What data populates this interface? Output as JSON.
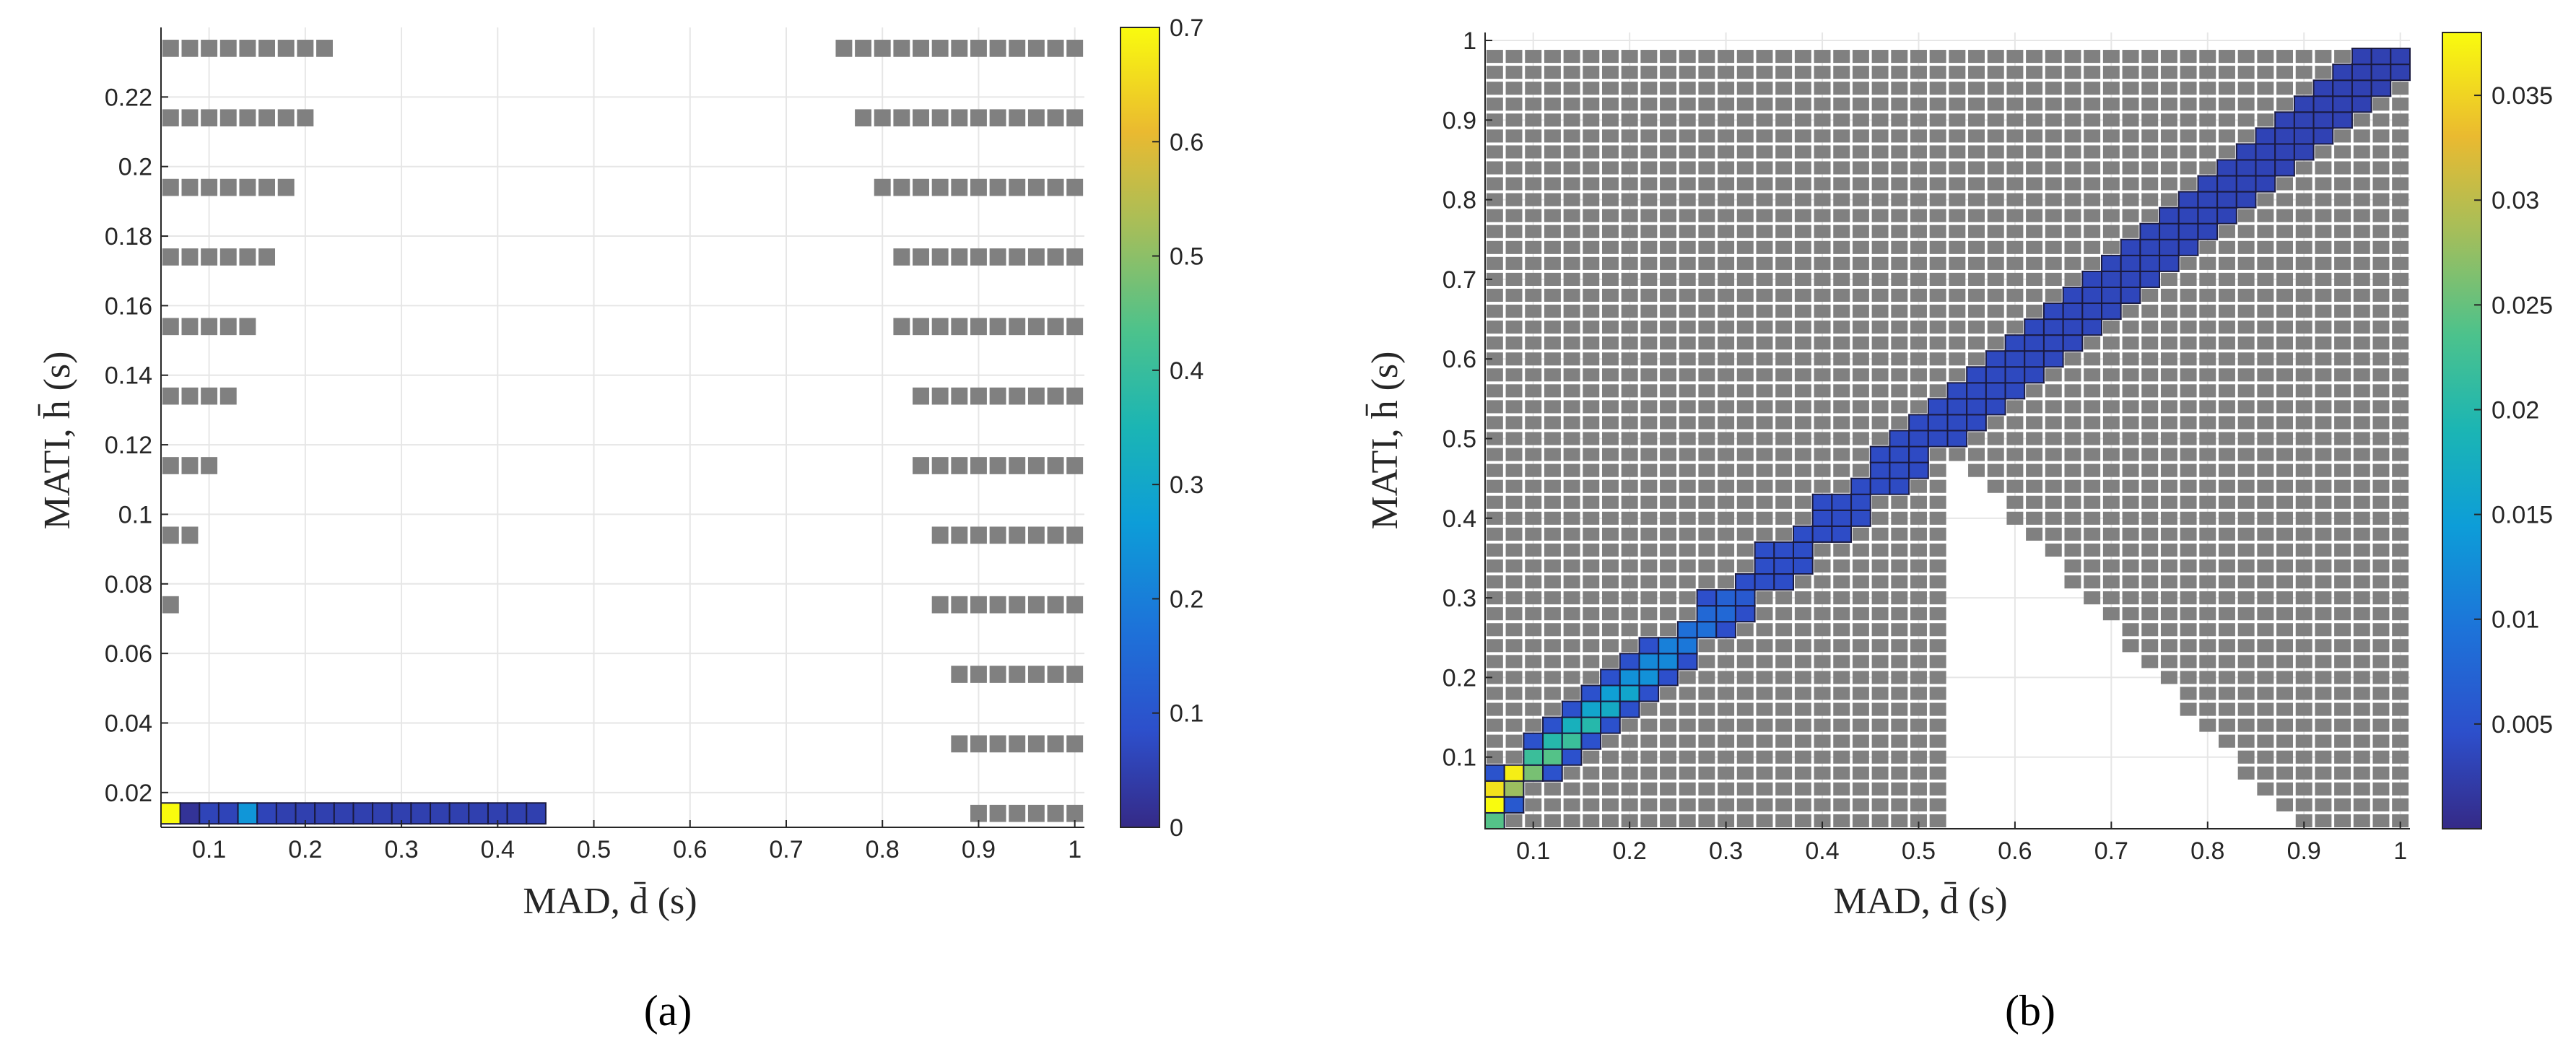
{
  "chart_data": [
    {
      "type": "heatmap",
      "panel_label": "(a)",
      "xlabel": "MAD, d̄ (s)",
      "ylabel": "MATI, h̄ (s)",
      "xlim": [
        0.05,
        1.01
      ],
      "ylim": [
        0.01,
        0.24
      ],
      "xticks": [
        0.1,
        0.2,
        0.3,
        0.4,
        0.5,
        0.6,
        0.7,
        0.8,
        0.9,
        1
      ],
      "xtick_labels": [
        "0.1",
        "0.2",
        "0.3",
        "0.4",
        "0.5",
        "0.6",
        "0.7",
        "0.8",
        "0.9",
        "1"
      ],
      "yticks": [
        0.02,
        0.04,
        0.06,
        0.08,
        0.1,
        0.12,
        0.14,
        0.16,
        0.18,
        0.2,
        0.22
      ],
      "ytick_labels": [
        "0.02",
        "0.04",
        "0.06",
        "0.08",
        "0.1",
        "0.12",
        "0.14",
        "0.16",
        "0.18",
        "0.2",
        "0.22"
      ],
      "grid": true,
      "cell_width": 0.02,
      "cell_height": 0.006,
      "infeasible_color": "#808080",
      "colorbar": {
        "min": 0,
        "max": 0.7,
        "ticks": [
          0,
          0.1,
          0.2,
          0.3,
          0.4,
          0.5,
          0.6,
          0.7
        ],
        "tick_labels": [
          "0",
          "0.1",
          "0.2",
          "0.3",
          "0.4",
          "0.5",
          "0.6",
          "0.7"
        ]
      },
      "gray_rows": [
        {
          "h": 0.234,
          "left_to": 0.23,
          "right_from": 0.76
        },
        {
          "h": 0.214,
          "left_to": 0.21,
          "right_from": 0.78
        },
        {
          "h": 0.194,
          "left_to": 0.19,
          "right_from": 0.8
        },
        {
          "h": 0.174,
          "left_to": 0.17,
          "right_from": 0.82
        },
        {
          "h": 0.154,
          "left_to": 0.15,
          "right_from": 0.82
        },
        {
          "h": 0.134,
          "left_to": 0.13,
          "right_from": 0.84
        },
        {
          "h": 0.114,
          "left_to": 0.11,
          "right_from": 0.84
        },
        {
          "h": 0.094,
          "left_to": 0.09,
          "right_from": 0.86
        },
        {
          "h": 0.074,
          "left_to": 0.07,
          "right_from": 0.86
        },
        {
          "h": 0.054,
          "left_to": 0.05,
          "right_from": 0.88
        },
        {
          "h": 0.034,
          "left_to": null,
          "right_from": 0.88
        },
        {
          "h": 0.014,
          "left_to": null,
          "right_from": 0.9
        }
      ],
      "value_row": {
        "h": 0.014,
        "d_start": 0.06,
        "values": [
          0.7,
          0.02,
          0.06,
          0.06,
          0.25,
          0.06,
          0.05,
          0.05,
          0.05,
          0.05,
          0.05,
          0.05,
          0.05,
          0.05,
          0.05,
          0.05,
          0.05,
          0.05,
          0.05,
          0.05
        ]
      }
    },
    {
      "type": "heatmap",
      "panel_label": "(b)",
      "xlabel": "MAD, d̄ (s)",
      "ylabel": "MATI, h̄ (s)",
      "xlim": [
        0.05,
        1.01
      ],
      "ylim": [
        0.01,
        1.01
      ],
      "xticks": [
        0.1,
        0.2,
        0.3,
        0.4,
        0.5,
        0.6,
        0.7,
        0.8,
        0.9,
        1
      ],
      "xtick_labels": [
        "0.1",
        "0.2",
        "0.3",
        "0.4",
        "0.5",
        "0.6",
        "0.7",
        "0.8",
        "0.9",
        "1"
      ],
      "yticks": [
        0.1,
        0.2,
        0.3,
        0.4,
        0.5,
        0.6,
        0.7,
        0.8,
        0.9,
        1
      ],
      "ytick_labels": [
        "0.1",
        "0.2",
        "0.3",
        "0.4",
        "0.5",
        "0.6",
        "0.7",
        "0.8",
        "0.9",
        "1"
      ],
      "grid": true,
      "cell_width": 0.02,
      "cell_height": 0.02,
      "infeasible_color": "#808080",
      "colorbar": {
        "min": 0,
        "max": 0.038,
        "ticks": [
          0.005,
          0.01,
          0.015,
          0.02,
          0.025,
          0.03,
          0.035
        ],
        "tick_labels": [
          "0.005",
          "0.01",
          "0.015",
          "0.02",
          "0.025",
          "0.03",
          "0.035"
        ]
      },
      "grid_range": {
        "d_start": 0.06,
        "d_end": 1.0,
        "h_start": 0.02,
        "h_end": 0.98
      },
      "band": {
        "lower_offset": 0.0,
        "upper_offset": 0.04
      },
      "blank_region": {
        "apex_d": 0.54,
        "apex_h": 0.48,
        "base_d": 0.88
      },
      "peak_values": [
        {
          "d": 0.06,
          "h": 0.06,
          "value": 0.036
        },
        {
          "d": 0.08,
          "h": 0.08,
          "value": 0.037
        },
        {
          "d": 0.06,
          "h": 0.04,
          "value": 0.038
        },
        {
          "d": 0.06,
          "h": 0.02,
          "value": 0.024
        },
        {
          "d": 0.08,
          "h": 0.06,
          "value": 0.028
        },
        {
          "d": 0.08,
          "h": 0.04,
          "value": 0.006
        },
        {
          "d": 0.1,
          "h": 0.08,
          "value": 0.026
        },
        {
          "d": 0.1,
          "h": 0.1,
          "value": 0.022
        },
        {
          "d": 0.12,
          "h": 0.1,
          "value": 0.024
        },
        {
          "d": 0.12,
          "h": 0.12,
          "value": 0.02
        },
        {
          "d": 0.14,
          "h": 0.12,
          "value": 0.022
        },
        {
          "d": 0.14,
          "h": 0.14,
          "value": 0.018
        },
        {
          "d": 0.16,
          "h": 0.14,
          "value": 0.02
        },
        {
          "d": 0.16,
          "h": 0.16,
          "value": 0.016
        },
        {
          "d": 0.18,
          "h": 0.16,
          "value": 0.017
        },
        {
          "d": 0.18,
          "h": 0.18,
          "value": 0.015
        },
        {
          "d": 0.2,
          "h": 0.18,
          "value": 0.016
        },
        {
          "d": 0.2,
          "h": 0.2,
          "value": 0.013
        },
        {
          "d": 0.22,
          "h": 0.22,
          "value": 0.012
        },
        {
          "d": 0.22,
          "h": 0.2,
          "value": 0.013
        },
        {
          "d": 0.24,
          "h": 0.24,
          "value": 0.011
        },
        {
          "d": 0.24,
          "h": 0.22,
          "value": 0.012
        },
        {
          "d": 0.26,
          "h": 0.26,
          "value": 0.009
        },
        {
          "d": 0.26,
          "h": 0.24,
          "value": 0.01
        },
        {
          "d": 0.28,
          "h": 0.28,
          "value": 0.008
        },
        {
          "d": 0.28,
          "h": 0.26,
          "value": 0.009
        },
        {
          "d": 0.3,
          "h": 0.3,
          "value": 0.007
        },
        {
          "d": 0.3,
          "h": 0.28,
          "value": 0.008
        },
        {
          "d": 0.32,
          "h": 0.3,
          "value": 0.006
        }
      ],
      "band_base_value": 0.004
    }
  ]
}
